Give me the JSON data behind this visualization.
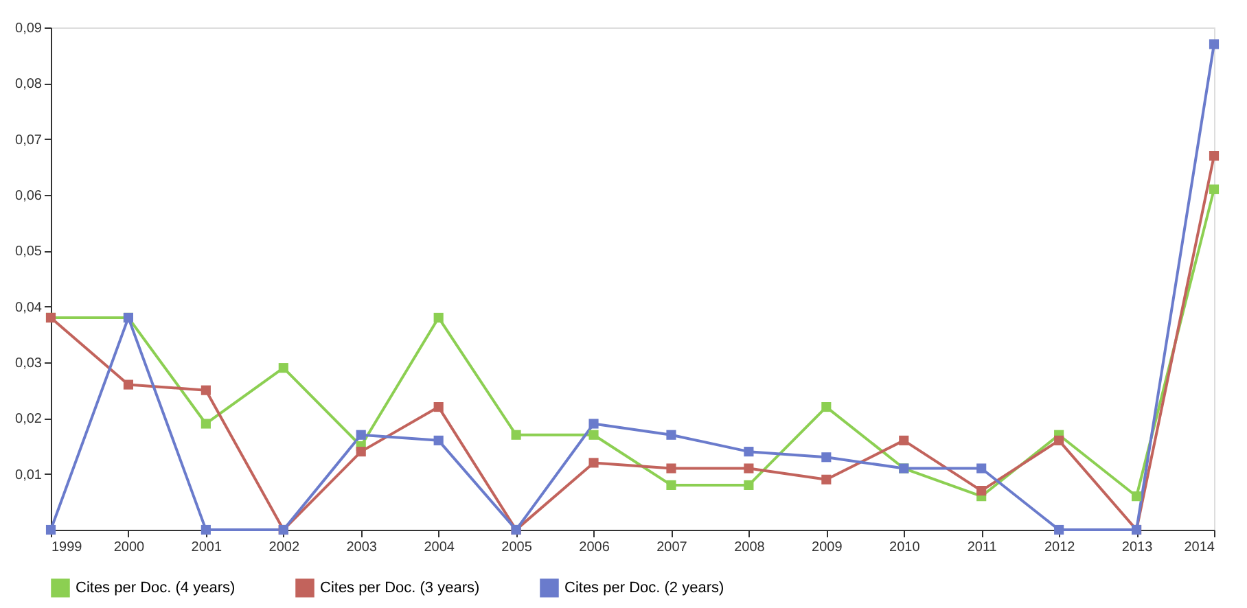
{
  "chart_data": {
    "type": "line",
    "categories": [
      "1999",
      "2000",
      "2001",
      "2002",
      "2003",
      "2004",
      "2005",
      "2006",
      "2007",
      "2008",
      "2009",
      "2010",
      "2011",
      "2012",
      "2013",
      "2014"
    ],
    "series": [
      {
        "name": "Cites per Doc. (4 years)",
        "color": "#8ccf52",
        "values": [
          0.038,
          0.038,
          0.019,
          0.029,
          0.015,
          0.038,
          0.017,
          0.017,
          0.008,
          0.008,
          0.022,
          0.011,
          0.006,
          0.017,
          0.006,
          0.061
        ]
      },
      {
        "name": "Cites per Doc. (3 years)",
        "color": "#c2635c",
        "values": [
          0.038,
          0.026,
          0.025,
          0,
          0.014,
          0.022,
          0,
          0.012,
          0.011,
          0.011,
          0.009,
          0.016,
          0.007,
          0.016,
          0,
          0.067
        ]
      },
      {
        "name": "Cites per Doc. (2 years)",
        "color": "#6a7bcc",
        "values": [
          0,
          0.038,
          0,
          0,
          0.017,
          0.016,
          0,
          0.019,
          0.017,
          0.014,
          0.013,
          0.011,
          0.011,
          0,
          0,
          0.087
        ]
      }
    ],
    "ylim": [
      0,
      0.09
    ],
    "yticks": [
      {
        "value": 0.01,
        "label": "0,01"
      },
      {
        "value": 0.02,
        "label": "0,02"
      },
      {
        "value": 0.03,
        "label": "0,03"
      },
      {
        "value": 0.04,
        "label": "0,04"
      },
      {
        "value": 0.05,
        "label": "0,05"
      },
      {
        "value": 0.06,
        "label": "0,06"
      },
      {
        "value": 0.07,
        "label": "0,07"
      },
      {
        "value": 0.08,
        "label": "0,08"
      },
      {
        "value": 0.09,
        "label": "0,09"
      }
    ],
    "grid": false,
    "legend": "bottom",
    "marker": "square",
    "line_style": "solid"
  }
}
